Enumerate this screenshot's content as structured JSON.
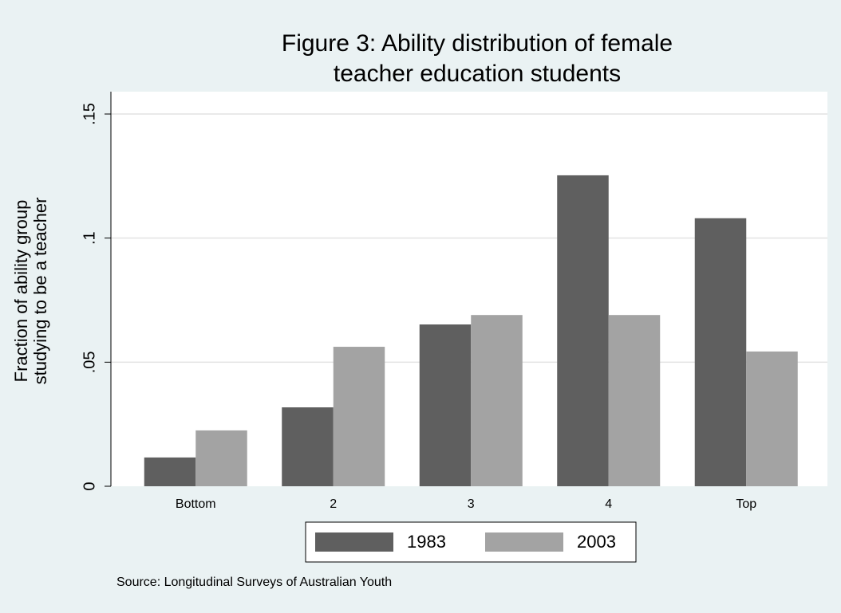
{
  "chart_data": {
    "type": "bar",
    "title": [
      "Figure 3: Ability distribution of female",
      "teacher education students"
    ],
    "y_label": [
      "Fraction of ability group",
      "studying to be a teacher"
    ],
    "source": "Source: Longitudinal Surveys of Australian Youth",
    "categories": [
      "Bottom",
      "2",
      "3",
      "4",
      "Top"
    ],
    "series": [
      {
        "name": "1983",
        "color": "#5f5f5f",
        "values": [
          0.0116,
          0.0318,
          0.0652,
          0.1253,
          0.108
        ]
      },
      {
        "name": "2003",
        "color": "#a3a3a3",
        "values": [
          0.0225,
          0.0562,
          0.069,
          0.069,
          0.0543
        ]
      }
    ],
    "ylim": [
      0,
      0.159
    ],
    "yticks": [
      0,
      {
        "value": 0.05,
        "label": ".05"
      },
      {
        "value": 0.1,
        "label": ".1"
      },
      {
        "value": 0.15,
        "label": ".15"
      }
    ],
    "grid": true
  }
}
